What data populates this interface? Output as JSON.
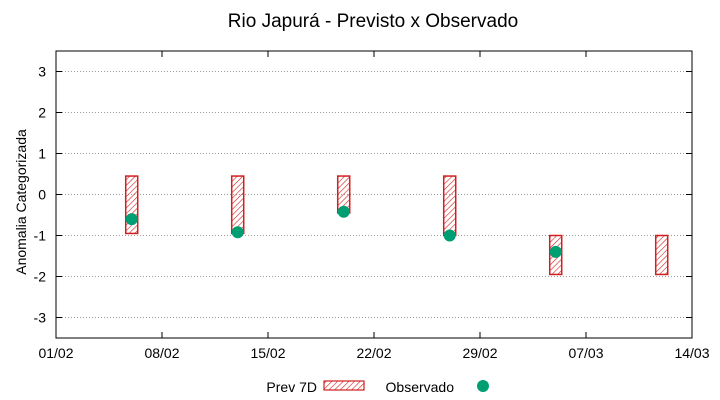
{
  "chart_data": {
    "type": "range-bar-with-points",
    "title": "Rio Japurá - Previsto x Observado",
    "xlabel": "",
    "ylabel": "Anomalia Categorizada",
    "x_ticks": [
      "01/02",
      "08/02",
      "15/02",
      "22/02",
      "29/02",
      "07/03",
      "14/03"
    ],
    "y_ticks": [
      -3,
      -2,
      -1,
      0,
      1,
      2,
      3
    ],
    "ylim": [
      -3.5,
      3.5
    ],
    "x_day_range": [
      0,
      42
    ],
    "grid": "horizontal-dotted",
    "legend_position": "bottom",
    "series": [
      {
        "name": "Prev 7D",
        "kind": "hatched-range-bar",
        "color": "#d11f1f",
        "points": [
          {
            "day": 5,
            "low": -0.95,
            "high": 0.45
          },
          {
            "day": 12,
            "low": -0.95,
            "high": 0.45
          },
          {
            "day": 19,
            "low": -0.45,
            "high": 0.45
          },
          {
            "day": 26,
            "low": -1.0,
            "high": 0.45
          },
          {
            "day": 33,
            "low": -1.95,
            "high": -1.0
          },
          {
            "day": 40,
            "low": -1.95,
            "high": -1.0
          }
        ]
      },
      {
        "name": "Observado",
        "kind": "point",
        "color": "#009e73",
        "points": [
          {
            "day": 5,
            "value": -0.6
          },
          {
            "day": 12,
            "value": -0.92
          },
          {
            "day": 19,
            "value": -0.42
          },
          {
            "day": 26,
            "value": -1.0
          },
          {
            "day": 33,
            "value": -1.4
          }
        ]
      }
    ]
  }
}
